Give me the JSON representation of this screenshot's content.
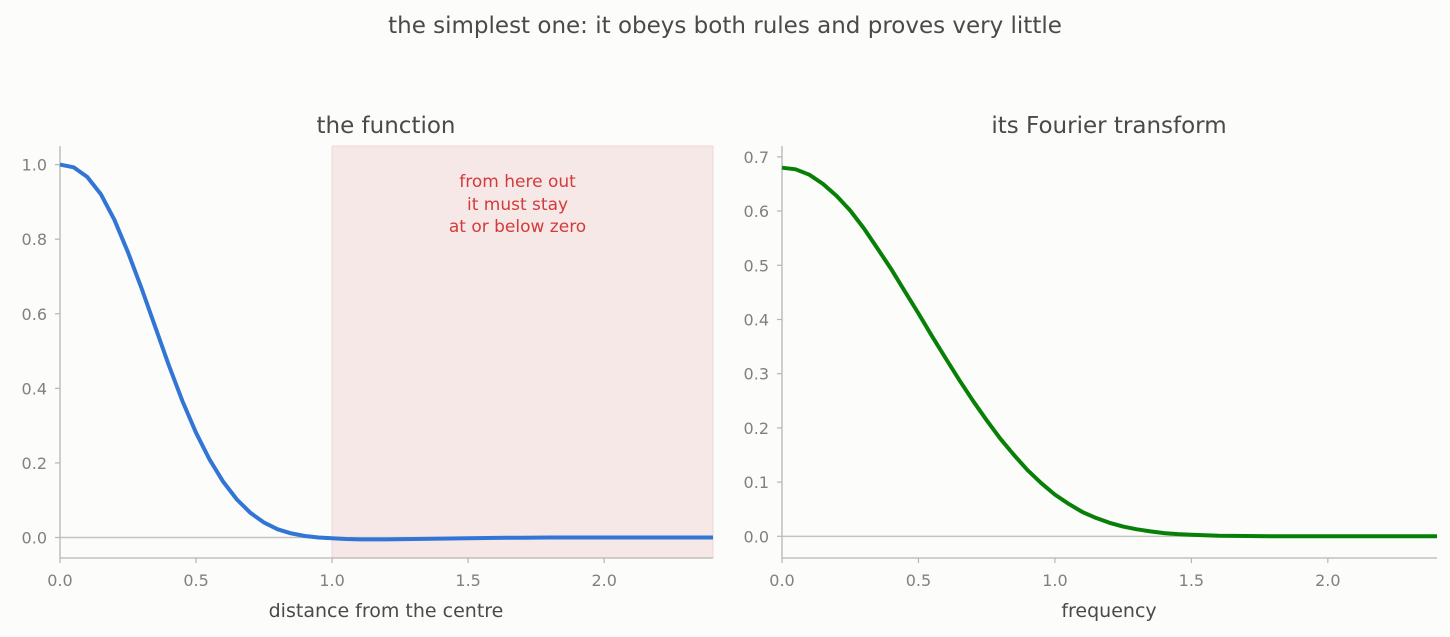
{
  "suptitle": "the simplest one: it obeys both rules and proves very little",
  "chart_data": [
    {
      "type": "line",
      "title": "the function",
      "xlabel": "distance from the centre",
      "ylabel": "",
      "xlim": [
        0.0,
        2.4
      ],
      "ylim": [
        -0.055,
        1.05
      ],
      "xticks": [
        "0.0",
        "0.5",
        "1.0",
        "1.5",
        "2.0"
      ],
      "yticks": [
        "0.0",
        "0.2",
        "0.4",
        "0.6",
        "0.8",
        "1.0"
      ],
      "grid": false,
      "series": [
        {
          "color": "#3176d4",
          "x": [
            0.0,
            0.05,
            0.1,
            0.15,
            0.2,
            0.25,
            0.3,
            0.35,
            0.4,
            0.45,
            0.5,
            0.55,
            0.6,
            0.65,
            0.7,
            0.75,
            0.8,
            0.85,
            0.9,
            0.95,
            1.0,
            1.05,
            1.1,
            1.15,
            1.2,
            1.3,
            1.4,
            1.5,
            1.6,
            1.7,
            1.8,
            1.9,
            2.0,
            2.2,
            2.4
          ],
          "y": [
            1.0,
            0.993,
            0.967,
            0.921,
            0.852,
            0.765,
            0.668,
            0.565,
            0.462,
            0.366,
            0.281,
            0.209,
            0.149,
            0.102,
            0.066,
            0.04,
            0.022,
            0.011,
            0.004,
            0.0,
            -0.002,
            -0.004,
            -0.005,
            -0.005,
            -0.005,
            -0.004,
            -0.003,
            -0.002,
            -0.001,
            -0.0005,
            0.0,
            0.0,
            0.0,
            0.0,
            0.0
          ]
        }
      ],
      "shaded_region": {
        "x_from": 1.0,
        "x_to": 2.4,
        "color": "#f7e8e8",
        "annotation": [
          "from here out",
          "it must stay",
          "at or below zero"
        ],
        "annotation_color": "#d43a3a"
      }
    },
    {
      "type": "line",
      "title": "its Fourier transform",
      "xlabel": "frequency",
      "ylabel": "",
      "xlim": [
        0.0,
        2.4
      ],
      "ylim": [
        -0.04,
        0.72
      ],
      "xticks": [
        "0.0",
        "0.5",
        "1.0",
        "1.5",
        "2.0"
      ],
      "yticks": [
        "0.0",
        "0.1",
        "0.2",
        "0.3",
        "0.4",
        "0.5",
        "0.6",
        "0.7"
      ],
      "grid": false,
      "series": [
        {
          "color": "#088008",
          "x": [
            0.0,
            0.05,
            0.1,
            0.15,
            0.2,
            0.25,
            0.3,
            0.35,
            0.4,
            0.45,
            0.5,
            0.55,
            0.6,
            0.65,
            0.7,
            0.75,
            0.8,
            0.85,
            0.9,
            0.95,
            1.0,
            1.05,
            1.1,
            1.15,
            1.2,
            1.25,
            1.3,
            1.35,
            1.4,
            1.45,
            1.5,
            1.6,
            1.7,
            1.8,
            1.9,
            2.0,
            2.2,
            2.4
          ],
          "y": [
            0.68,
            0.677,
            0.667,
            0.65,
            0.628,
            0.601,
            0.568,
            0.531,
            0.493,
            0.452,
            0.411,
            0.369,
            0.328,
            0.288,
            0.25,
            0.214,
            0.18,
            0.15,
            0.122,
            0.098,
            0.077,
            0.06,
            0.045,
            0.034,
            0.025,
            0.018,
            0.013,
            0.009,
            0.006,
            0.004,
            0.003,
            0.001,
            0.0005,
            0.0,
            0.0,
            0.0,
            0.0,
            0.0
          ]
        }
      ]
    }
  ]
}
